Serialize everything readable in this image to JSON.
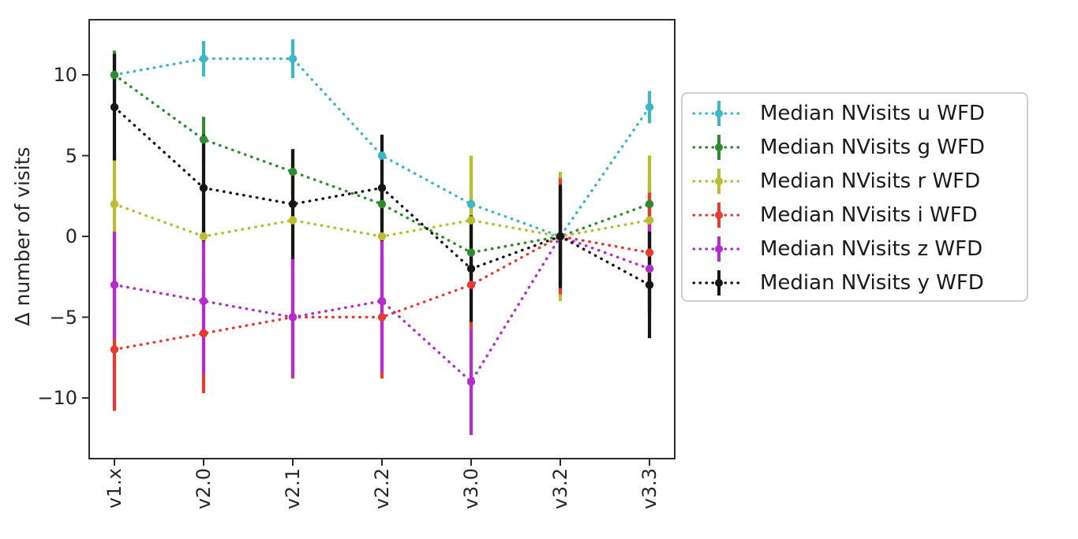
{
  "figure": {
    "background": "#ffffff",
    "axis_color": "#2b2b2b",
    "tick_label_color": "#262626"
  },
  "chart_data": {
    "type": "line",
    "title": "",
    "xlabel": "",
    "ylabel": "Δ number of visits",
    "line_style": "dotted",
    "marker": "circle",
    "error_bars": true,
    "grid": false,
    "categories": [
      "v1.x",
      "v2.0",
      "v2.1",
      "v2.2",
      "v3.0",
      "v3.2",
      "v3.3"
    ],
    "y_ticks": {
      "values": [
        10,
        5,
        0,
        -5,
        -10
      ],
      "labels": [
        "10",
        "5",
        "0",
        "−5",
        "−10"
      ]
    },
    "ylim": [
      -13.8,
      13.4
    ],
    "legend": {
      "position": "outside-right",
      "border_color": "#cfcfcf"
    },
    "series": [
      {
        "name": "Median NVisits u WFD",
        "color": "#3eb6c6",
        "values": [
          10,
          11,
          11,
          5,
          2,
          0,
          8
        ],
        "errors": [
          1.3,
          1.1,
          1.2,
          1.2,
          1.5,
          3.0,
          1.0
        ]
      },
      {
        "name": "Median NVisits g WFD",
        "color": "#2e8b2e",
        "values": [
          10,
          6,
          4,
          2,
          -1,
          0,
          2
        ],
        "errors": [
          1.5,
          1.4,
          1.4,
          1.4,
          1.5,
          2.0,
          1.5
        ]
      },
      {
        "name": "Median NVisits r WFD",
        "color": "#b9bd2f",
        "values": [
          2,
          0,
          1,
          0,
          1,
          0,
          1
        ],
        "errors": [
          3.0,
          3.5,
          3.5,
          3.5,
          4.0,
          4.0,
          4.0
        ]
      },
      {
        "name": "Median NVisits i WFD",
        "color": "#e83a2e",
        "values": [
          -7,
          -6,
          -5,
          -5,
          -3,
          0,
          -1
        ],
        "errors": [
          3.8,
          3.7,
          3.8,
          3.8,
          2.7,
          3.6,
          3.7
        ]
      },
      {
        "name": "Median NVisits z WFD",
        "color": "#b32ccd",
        "values": [
          -3,
          -4,
          -5,
          -4,
          -9,
          0,
          -2
        ],
        "errors": [
          3.3,
          4.5,
          3.7,
          4.4,
          3.3,
          3.0,
          2.7
        ]
      },
      {
        "name": "Median NVisits y WFD",
        "color": "#151515",
        "values": [
          8,
          3,
          2,
          3,
          -2,
          0,
          -3
        ],
        "errors": [
          3.3,
          3.3,
          3.4,
          3.3,
          3.3,
          3.2,
          3.3
        ]
      }
    ]
  }
}
